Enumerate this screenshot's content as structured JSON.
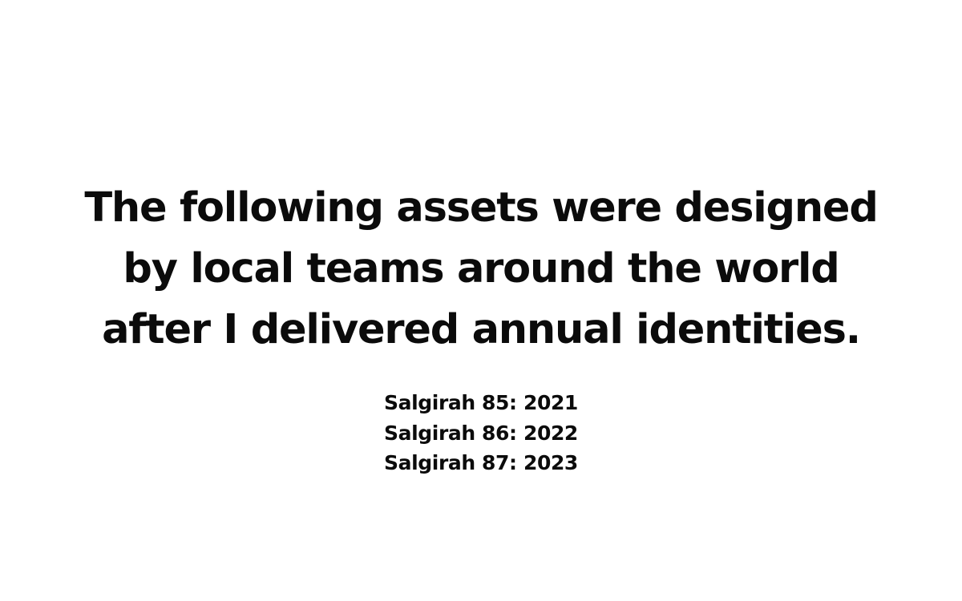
{
  "headline": {
    "lines": [
      "The following assets were designed",
      "by local teams around the world",
      "after I delivered annual identities."
    ]
  },
  "editions": [
    "Salgirah 85: 2021",
    "Salgirah 86: 2022",
    "Salgirah 87: 2023"
  ],
  "colors": {
    "background": "#ffffff",
    "text": "#0b0b0b"
  }
}
